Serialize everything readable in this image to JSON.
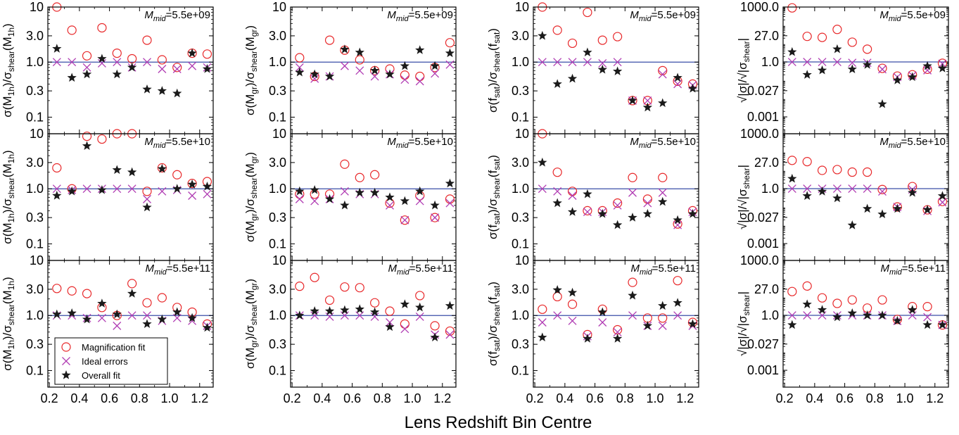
{
  "chart_data": {
    "type": "scatter",
    "x_label": "Lens Redshift Bin Centre",
    "x_ticks": [
      "0.2",
      "0.4",
      "0.6",
      "0.8",
      "1.0",
      "1.2"
    ],
    "xlim": [
      0.19,
      1.29
    ],
    "y_scale": "log",
    "reference_line": 1.0,
    "legend": {
      "placement": "bottom-left of panel row 3, column 1",
      "entries": [
        {
          "label": "Magnification fit",
          "marker": "open-circle",
          "color": "#e8282a"
        },
        {
          "label": "Ideal errors",
          "marker": "cross",
          "color": "#b03cb3"
        },
        {
          "label": "Overall fit",
          "marker": "star",
          "color": "#1a1a1a"
        }
      ]
    },
    "row_notes": [
      {
        "symbol": "M",
        "sub": "mid",
        "value": "=5.5e+09"
      },
      {
        "symbol": "M",
        "sub": "mid",
        "value": "=5.5e+10"
      },
      {
        "symbol": "M",
        "sub": "mid",
        "value": "=5.5e+11"
      }
    ],
    "columns": [
      {
        "y_label_parts": [
          "σ(M",
          "1h",
          ")/σ",
          "shear",
          "(M",
          "1h",
          ")"
        ],
        "y_ticks": [
          "10",
          "3.0",
          "1.0",
          "0.3",
          "0.1"
        ],
        "y_tick_values": [
          10,
          3,
          1,
          0.3,
          0.1
        ],
        "ylim": [
          0.05,
          10
        ]
      },
      {
        "y_label_parts": [
          "σ(M",
          "gr",
          ")/σ",
          "shear",
          "(M",
          "gr",
          ")"
        ],
        "y_ticks": [
          "10",
          "3.0",
          "1.0",
          "0.3",
          "0.1"
        ],
        "y_tick_values": [
          10,
          3,
          1,
          0.3,
          0.1
        ],
        "ylim": [
          0.05,
          10
        ]
      },
      {
        "y_label_parts": [
          "σ(f",
          "sat",
          ")/σ",
          "shear",
          "(f",
          "sat",
          ")"
        ],
        "y_ticks": [
          "10",
          "3.0",
          "1.0",
          "0.3",
          "0.1"
        ],
        "y_tick_values": [
          10,
          3,
          1,
          0.3,
          0.1
        ],
        "ylim": [
          0.05,
          10
        ]
      },
      {
        "y_label_parts": [
          "√|σ|/√|σ",
          "shear",
          "|"
        ],
        "y_ticks": [
          "1000.0",
          "27.0",
          "1.0",
          "0.027",
          "0.001"
        ],
        "y_tick_values": [
          1000,
          27,
          1,
          0.027,
          0.001
        ],
        "ylim": [
          0.00012,
          1000
        ]
      }
    ],
    "x": [
      0.25,
      0.35,
      0.45,
      0.55,
      0.65,
      0.75,
      0.85,
      0.95,
      1.05,
      1.15,
      1.25
    ],
    "panels": [
      [
        {
          "series": {
            "magnification": [
              10.0,
              3.8,
              1.3,
              4.2,
              1.45,
              1.15,
              2.5,
              1.1,
              0.8,
              1.45,
              1.4
            ],
            "ideal": [
              1.0,
              1.0,
              0.8,
              0.95,
              1.0,
              0.8,
              1.0,
              0.75,
              0.75,
              0.85,
              0.8
            ],
            "overall": [
              1.75,
              0.52,
              0.6,
              1.15,
              0.6,
              0.8,
              0.32,
              0.3,
              0.27,
              1.45,
              0.75
            ]
          }
        },
        {
          "series": {
            "magnification": [
              1.2,
              0.55,
              2.5,
              1.65,
              1.1,
              0.7,
              0.75,
              0.58,
              0.55,
              0.8,
              2.25
            ],
            "ideal": [
              0.8,
              0.5,
              0.55,
              0.85,
              0.7,
              0.55,
              0.6,
              0.48,
              0.45,
              0.62,
              0.9
            ]
          },
          "overall_override": null
        },
        {
          "series": {
            "magnification": [
              10.0,
              3.8,
              2.2,
              8.0,
              2.5,
              2.9,
              0.2,
              0.2,
              0.7,
              0.45,
              0.4
            ],
            "ideal": [
              1.0,
              1.0,
              1.0,
              1.0,
              0.95,
              1.0,
              0.2,
              0.2,
              0.6,
              0.4,
              0.38
            ]
          }
        },
        {
          "series": {
            "magnification": [
              900.0,
              25.0,
              22.0,
              60.0,
              12.0,
              5.0,
              0.45,
              0.17,
              0.2,
              0.4,
              0.85
            ],
            "ideal": [
              1.0,
              1.0,
              1.0,
              1.0,
              0.9,
              0.9,
              0.4,
              0.15,
              0.18,
              0.35,
              0.8
            ]
          }
        }
      ],
      [
        {
          "series": {
            "magnification": [
              2.4,
              1.0,
              9.0,
              8.0,
              10.0,
              10.0,
              0.9,
              2.4,
              1.8,
              1.25,
              1.35
            ],
            "ideal": [
              1.0,
              0.95,
              1.0,
              1.0,
              1.0,
              1.0,
              0.65,
              0.9,
              0.95,
              0.75,
              0.8
            ]
          }
        },
        {
          "series": {
            "magnification": [
              0.8,
              0.8,
              0.8,
              2.8,
              1.6,
              1.8,
              0.55,
              0.27,
              0.75,
              0.3,
              0.65
            ],
            "ideal": [
              0.65,
              0.6,
              0.65,
              0.9,
              0.8,
              0.8,
              0.5,
              0.27,
              0.6,
              0.3,
              0.55
            ]
          }
        },
        {
          "series": {
            "magnification": [
              10.0,
              2.0,
              0.9,
              0.4,
              0.4,
              0.55,
              1.6,
              0.65,
              1.6,
              0.23,
              0.4
            ],
            "ideal": [
              1.0,
              0.9,
              0.75,
              0.38,
              0.38,
              0.5,
              0.85,
              0.55,
              0.85,
              0.22,
              0.38
            ]
          }
        },
        {
          "series": {
            "magnification": [
              35.0,
              30.0,
              10.0,
              11.0,
              8.0,
              8.0,
              0.9,
              0.1,
              1.3,
              0.07,
              0.2
            ],
            "ideal": [
              1.0,
              1.0,
              1.0,
              1.0,
              1.0,
              1.0,
              0.7,
              0.1,
              0.9,
              0.06,
              0.18
            ]
          }
        }
      ],
      [
        {
          "series": {
            "magnification": [
              3.1,
              2.8,
              2.5,
              1.4,
              1.0,
              3.8,
              1.7,
              2.1,
              1.4,
              1.15,
              0.7
            ],
            "ideal": [
              1.0,
              1.0,
              0.9,
              0.9,
              0.65,
              1.0,
              1.0,
              0.8,
              0.9,
              0.8,
              0.65
            ]
          }
        },
        {
          "series": {
            "magnification": [
              3.4,
              4.9,
              1.9,
              3.3,
              3.2,
              1.7,
              1.2,
              0.7,
              2.3,
              0.65,
              0.52
            ],
            "ideal": [
              1.0,
              1.0,
              0.95,
              1.0,
              1.0,
              0.95,
              0.75,
              0.57,
              0.95,
              0.45,
              0.45
            ]
          }
        },
        {
          "series": {
            "magnification": [
              1.3,
              2.2,
              1.6,
              0.45,
              1.3,
              0.55,
              4.0,
              0.9,
              0.9,
              4.3,
              0.75
            ],
            "ideal": [
              0.75,
              1.0,
              0.8,
              0.42,
              0.75,
              0.5,
              1.0,
              0.65,
              0.65,
              1.0,
              0.65
            ]
          }
        },
        {
          "series": {
            "magnification": [
              20.0,
              40.0,
              9.0,
              4.5,
              7.0,
              2.5,
              7.0,
              0.6,
              3.0,
              3.0,
              0.3
            ],
            "ideal": [
              1.0,
              1.0,
              1.0,
              1.0,
              1.0,
              1.0,
              1.0,
              0.5,
              1.0,
              0.8,
              0.3
            ]
          }
        }
      ]
    ],
    "overall": [
      [
        [
          1.75,
          0.52,
          0.6,
          1.15,
          0.6,
          0.8,
          0.32,
          0.3,
          0.27,
          1.45,
          0.75
        ],
        [
          0.65,
          0.6,
          0.55,
          1.7,
          1.5,
          0.7,
          0.6,
          0.85,
          1.65,
          0.85,
          1.45
        ],
        [
          3.0,
          0.4,
          0.5,
          1.5,
          0.73,
          0.68,
          0.2,
          0.15,
          0.18,
          0.52,
          0.33
        ],
        [
          3.5,
          0.2,
          0.35,
          5.0,
          0.4,
          0.7,
          0.005,
          0.1,
          0.15,
          0.6,
          0.45
        ]
      ],
      [
        [
          0.75,
          0.9,
          6.0,
          0.95,
          2.2,
          2.0,
          0.46,
          2.3,
          1.0,
          1.2,
          1.1
        ],
        [
          0.9,
          0.95,
          0.65,
          0.5,
          0.85,
          0.85,
          0.7,
          0.6,
          0.9,
          0.5,
          1.25
        ],
        [
          3.0,
          0.55,
          0.38,
          0.8,
          0.35,
          0.22,
          0.3,
          0.35,
          0.58,
          0.27,
          0.35
        ],
        [
          3.5,
          0.4,
          0.7,
          0.3,
          0.01,
          0.08,
          0.04,
          0.08,
          0.6,
          0.07,
          0.4
        ]
      ],
      [
        [
          1.05,
          1.1,
          0.85,
          1.65,
          1.05,
          2.5,
          0.7,
          0.85,
          1.15,
          0.9,
          0.6
        ],
        [
          1.0,
          1.2,
          1.2,
          1.25,
          1.3,
          1.15,
          0.62,
          1.6,
          1.4,
          0.4,
          1.5
        ],
        [
          0.4,
          2.9,
          2.6,
          0.38,
          1.15,
          0.38,
          2.3,
          0.65,
          1.5,
          1.7,
          0.7
        ],
        [
          0.3,
          4.0,
          2.0,
          0.8,
          1.3,
          1.0,
          1.0,
          0.5,
          2.0,
          0.3,
          0.3
        ]
      ]
    ]
  }
}
